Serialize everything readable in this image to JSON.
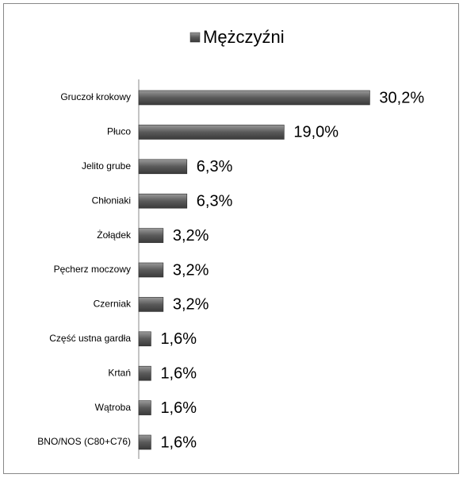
{
  "chart_data": {
    "type": "bar",
    "orientation": "horizontal",
    "categories": [
      "Gruczoł krokowy",
      "Płuco",
      "Jelito grube",
      "Chłoniaki",
      "Żołądek",
      "Pęcherz moczowy",
      "Czerniak",
      "Część ustna gardła",
      "Krtań",
      "Wątroba",
      "BNO/NOS (C80+C76)"
    ],
    "series": [
      {
        "name": "Mężczyźni",
        "color": "#5a5a5a",
        "values": [
          30.2,
          19.0,
          6.3,
          6.3,
          3.2,
          3.2,
          3.2,
          1.6,
          1.6,
          1.6,
          1.6
        ],
        "value_labels": [
          "30,2%",
          "19,0%",
          "6,3%",
          "6,3%",
          "3,2%",
          "3,2%",
          "3,2%",
          "1,6%",
          "1,6%",
          "1,6%",
          "1,6%"
        ]
      }
    ],
    "legend": "top"
  }
}
